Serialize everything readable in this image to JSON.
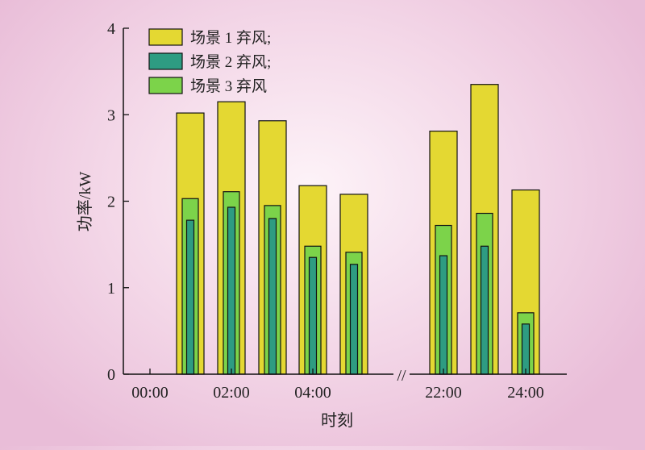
{
  "chart_data": {
    "type": "bar",
    "title": "",
    "xlabel": "时刻",
    "ylabel": "功率/kW",
    "ylim": [
      0,
      4
    ],
    "yticks": [
      "0",
      "1",
      "2",
      "3",
      "4"
    ],
    "xticks": [
      "00:00",
      "02:00",
      "04:00",
      "22:00",
      "24:00"
    ],
    "axis_break": "//",
    "grid": false,
    "legend_position": "top-left",
    "categories": [
      "01:00",
      "02:00",
      "03:00",
      "04:00",
      "05:00",
      "22:00",
      "23:00",
      "24:00"
    ],
    "series": [
      {
        "name": "场景 1 弃风;",
        "color": "#e4d832",
        "values": [
          3.02,
          3.15,
          2.93,
          2.18,
          2.08,
          2.81,
          3.35,
          2.13
        ]
      },
      {
        "name": "场景 2 弃风;",
        "color": "#2e9c82",
        "values": [
          1.78,
          1.93,
          1.8,
          1.35,
          1.27,
          1.37,
          1.48,
          0.58
        ]
      },
      {
        "name": "场景 3 弃风",
        "color": "#7cd34a",
        "values": [
          2.03,
          2.11,
          1.95,
          1.48,
          1.41,
          1.72,
          1.86,
          0.71
        ]
      }
    ]
  }
}
